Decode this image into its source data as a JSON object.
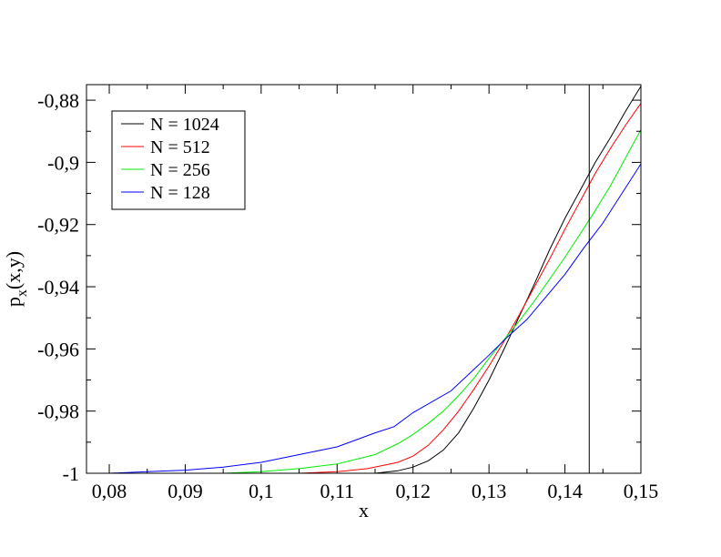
{
  "chart_data": {
    "type": "line",
    "title": "",
    "xlabel": "x",
    "ylabel": {
      "base": "p",
      "sub": "x",
      "rest": "(x,y)"
    },
    "xlim": [
      0.077,
      0.15
    ],
    "ylim": [
      -1.0,
      -0.875
    ],
    "x_ticks": [
      0.08,
      0.09,
      0.1,
      0.11,
      0.12,
      0.13,
      0.14,
      0.15
    ],
    "x_tick_labels": [
      "0,08",
      "0,09",
      "0,1",
      "0,11",
      "0,12",
      "0,13",
      "0,14",
      "0,15"
    ],
    "y_ticks": [
      -1.0,
      -0.98,
      -0.96,
      -0.94,
      -0.92,
      -0.9,
      -0.88
    ],
    "y_tick_labels": [
      "-1",
      "-0,98",
      "-0,96",
      "-0,94",
      "-0,92",
      "-0,9",
      "-0,88"
    ],
    "vertical_line_x": 0.1432,
    "grid": false,
    "legend_position": "top-left",
    "series": [
      {
        "name": "N = 1024",
        "color": "#000000",
        "x": [
          0.115,
          0.118,
          0.12,
          0.122,
          0.124,
          0.126,
          0.128,
          0.13,
          0.132,
          0.134,
          0.136,
          0.138,
          0.14,
          0.142,
          0.144,
          0.146,
          0.148,
          0.15
        ],
        "y": [
          -1.0,
          -0.9992,
          -0.998,
          -0.996,
          -0.9925,
          -0.987,
          -0.979,
          -0.97,
          -0.96,
          -0.9495,
          -0.939,
          -0.928,
          -0.918,
          -0.909,
          -0.9,
          -0.892,
          -0.8835,
          -0.8755
        ]
      },
      {
        "name": "N = 512",
        "color": "#ff0000",
        "x": [
          0.105,
          0.11,
          0.114,
          0.118,
          0.12,
          0.122,
          0.124,
          0.126,
          0.128,
          0.13,
          0.132,
          0.134,
          0.136,
          0.138,
          0.14,
          0.142,
          0.144,
          0.146,
          0.148,
          0.15
        ],
        "y": [
          -1.0,
          -0.9995,
          -0.9985,
          -0.9965,
          -0.9945,
          -0.991,
          -0.986,
          -0.98,
          -0.973,
          -0.9655,
          -0.9575,
          -0.949,
          -0.94,
          -0.931,
          -0.9215,
          -0.9125,
          -0.9035,
          -0.8955,
          -0.888,
          -0.881
        ]
      },
      {
        "name": "N = 256",
        "color": "#00ee00",
        "x": [
          0.095,
          0.1,
          0.105,
          0.11,
          0.115,
          0.118,
          0.12,
          0.122,
          0.124,
          0.126,
          0.128,
          0.13,
          0.132,
          0.134,
          0.136,
          0.138,
          0.14,
          0.142,
          0.144,
          0.146,
          0.148,
          0.15
        ],
        "y": [
          -1.0,
          -0.9995,
          -0.9985,
          -0.997,
          -0.994,
          -0.9905,
          -0.9875,
          -0.984,
          -0.98,
          -0.975,
          -0.9695,
          -0.963,
          -0.957,
          -0.951,
          -0.9445,
          -0.9375,
          -0.9305,
          -0.923,
          -0.9155,
          -0.9075,
          -0.8985,
          -0.8895
        ]
      },
      {
        "name": "N = 128",
        "color": "#0000ff",
        "x": [
          0.08,
          0.085,
          0.09,
          0.095,
          0.1,
          0.105,
          0.11,
          0.115,
          0.1175,
          0.12,
          0.125,
          0.13,
          0.1325,
          0.135,
          0.14,
          0.1425,
          0.145,
          0.15
        ],
        "y": [
          -1.0,
          -0.9995,
          -0.999,
          -0.998,
          -0.9965,
          -0.994,
          -0.9915,
          -0.987,
          -0.985,
          -0.9805,
          -0.9735,
          -0.962,
          -0.956,
          -0.9505,
          -0.936,
          -0.9275,
          -0.9195,
          -0.9005
        ]
      }
    ]
  }
}
